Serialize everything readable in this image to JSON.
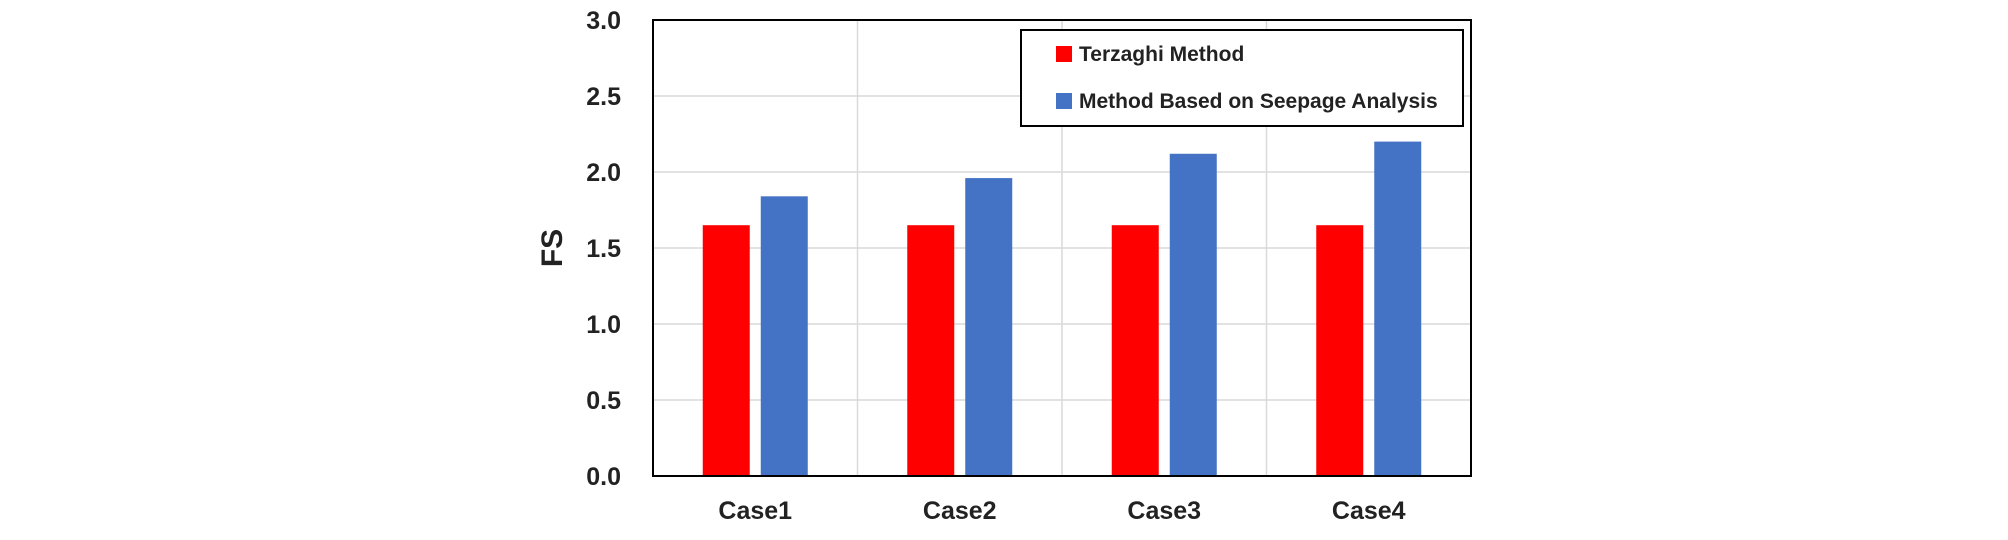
{
  "chart_data": {
    "type": "bar",
    "categories": [
      "Case1",
      "Case2",
      "Case3",
      "Case4"
    ],
    "series": [
      {
        "name": "Terzaghi Method",
        "values": [
          1.65,
          1.65,
          1.65,
          1.65
        ],
        "color": "#ff0000"
      },
      {
        "name": "Method Based on Seepage Analysis",
        "values": [
          1.84,
          1.96,
          2.12,
          2.2
        ],
        "color": "#4472c4"
      }
    ],
    "title": "",
    "xlabel": "",
    "ylabel": "FS",
    "ylim": [
      0,
      3.0
    ],
    "yticks": [
      "0.0",
      "0.5",
      "1.0",
      "1.5",
      "2.0",
      "2.5",
      "3.0"
    ],
    "grid": true,
    "legend_position": "top-right"
  }
}
